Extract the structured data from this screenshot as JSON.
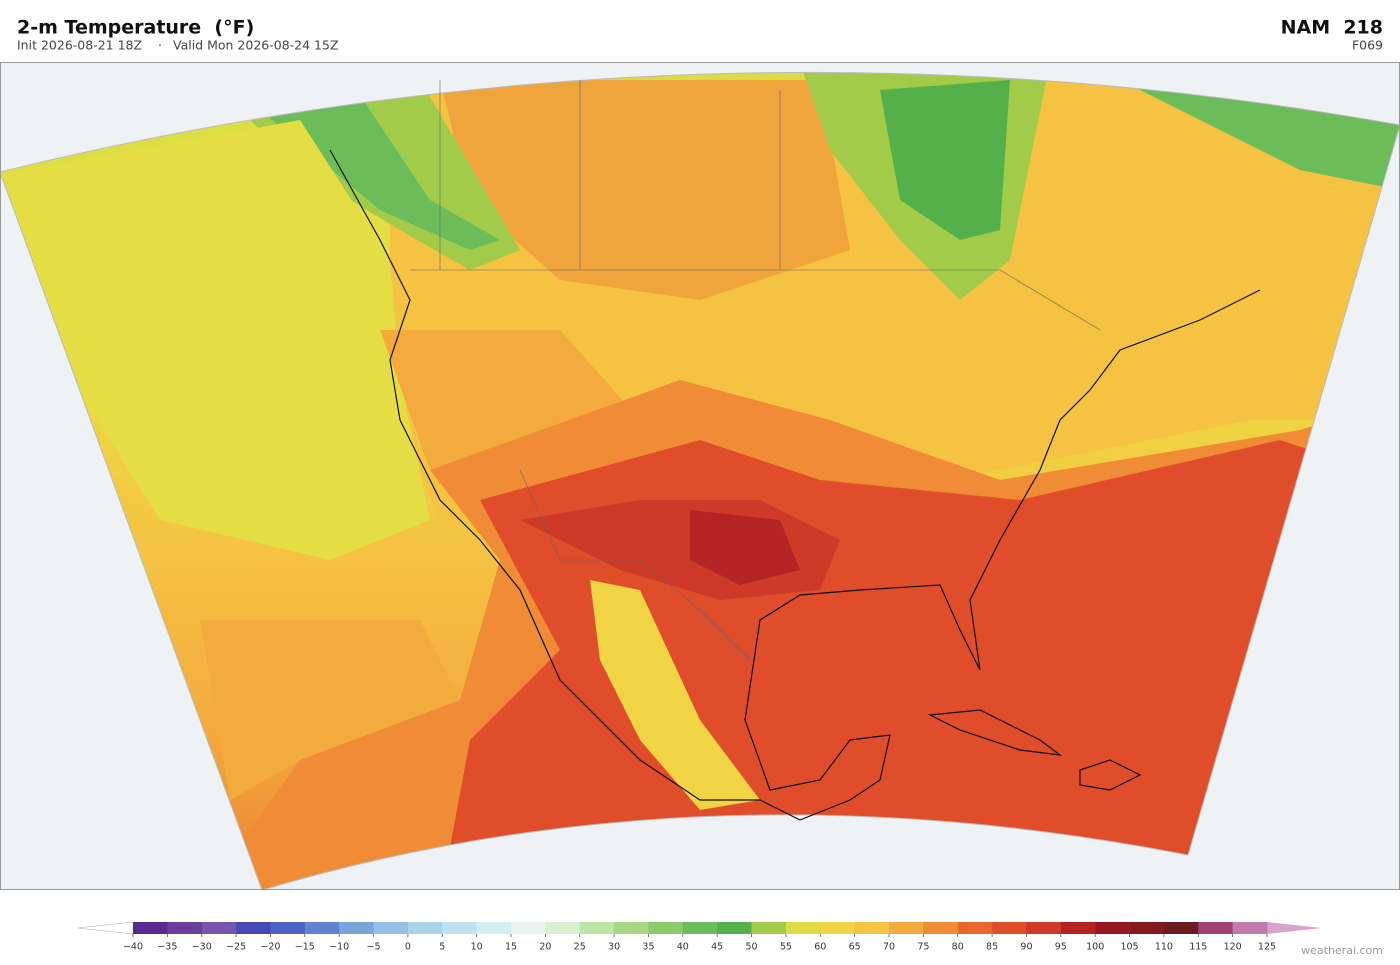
{
  "header": {
    "title": "2-m Temperature  (°F)",
    "init": "Init 2026-08-21 18Z",
    "separator": "·",
    "valid": "Valid Mon 2026-08-24 15Z",
    "model": "NAM  218",
    "forecast_hour": "F069"
  },
  "colorbar": {
    "ticks": [
      {
        "value": -40,
        "label": "−40"
      },
      {
        "value": -35,
        "label": "−35"
      },
      {
        "value": -30,
        "label": "−30"
      },
      {
        "value": -25,
        "label": "−25"
      },
      {
        "value": -20,
        "label": "−20"
      },
      {
        "value": -15,
        "label": "−15"
      },
      {
        "value": -10,
        "label": "−10"
      },
      {
        "value": -5,
        "label": "−5"
      },
      0,
      5,
      10,
      15,
      20,
      25,
      30,
      35,
      40,
      45,
      50,
      55,
      60,
      65,
      70,
      75,
      80,
      85,
      90,
      95,
      100,
      105,
      110,
      115,
      120,
      125
    ],
    "colors": [
      "#5b2a8e",
      "#6b3d9c",
      "#7a55ae",
      "#4848b6",
      "#4e63c6",
      "#6283d2",
      "#7ca4dc",
      "#94c0e4",
      "#acd3ea",
      "#c3e2ef",
      "#d8edf2",
      "#e8f5ec",
      "#d9efcf",
      "#c2e3a6",
      "#a6d785",
      "#8ccb6b",
      "#6cbd5a",
      "#53b04a",
      "#a2cb4a",
      "#dcdc45",
      "#f0d444",
      "#f5c242",
      "#f4ab3e",
      "#ef8c35",
      "#e8672c",
      "#e04d2a",
      "#cf3a28",
      "#b52424",
      "#98191f",
      "#84191e",
      "#6e1a22",
      "#9e4175",
      "#c07aaf"
    ],
    "under_color": "#ffffff",
    "over_color": "#d6a4cf"
  },
  "watermark": "weatherai.com"
}
